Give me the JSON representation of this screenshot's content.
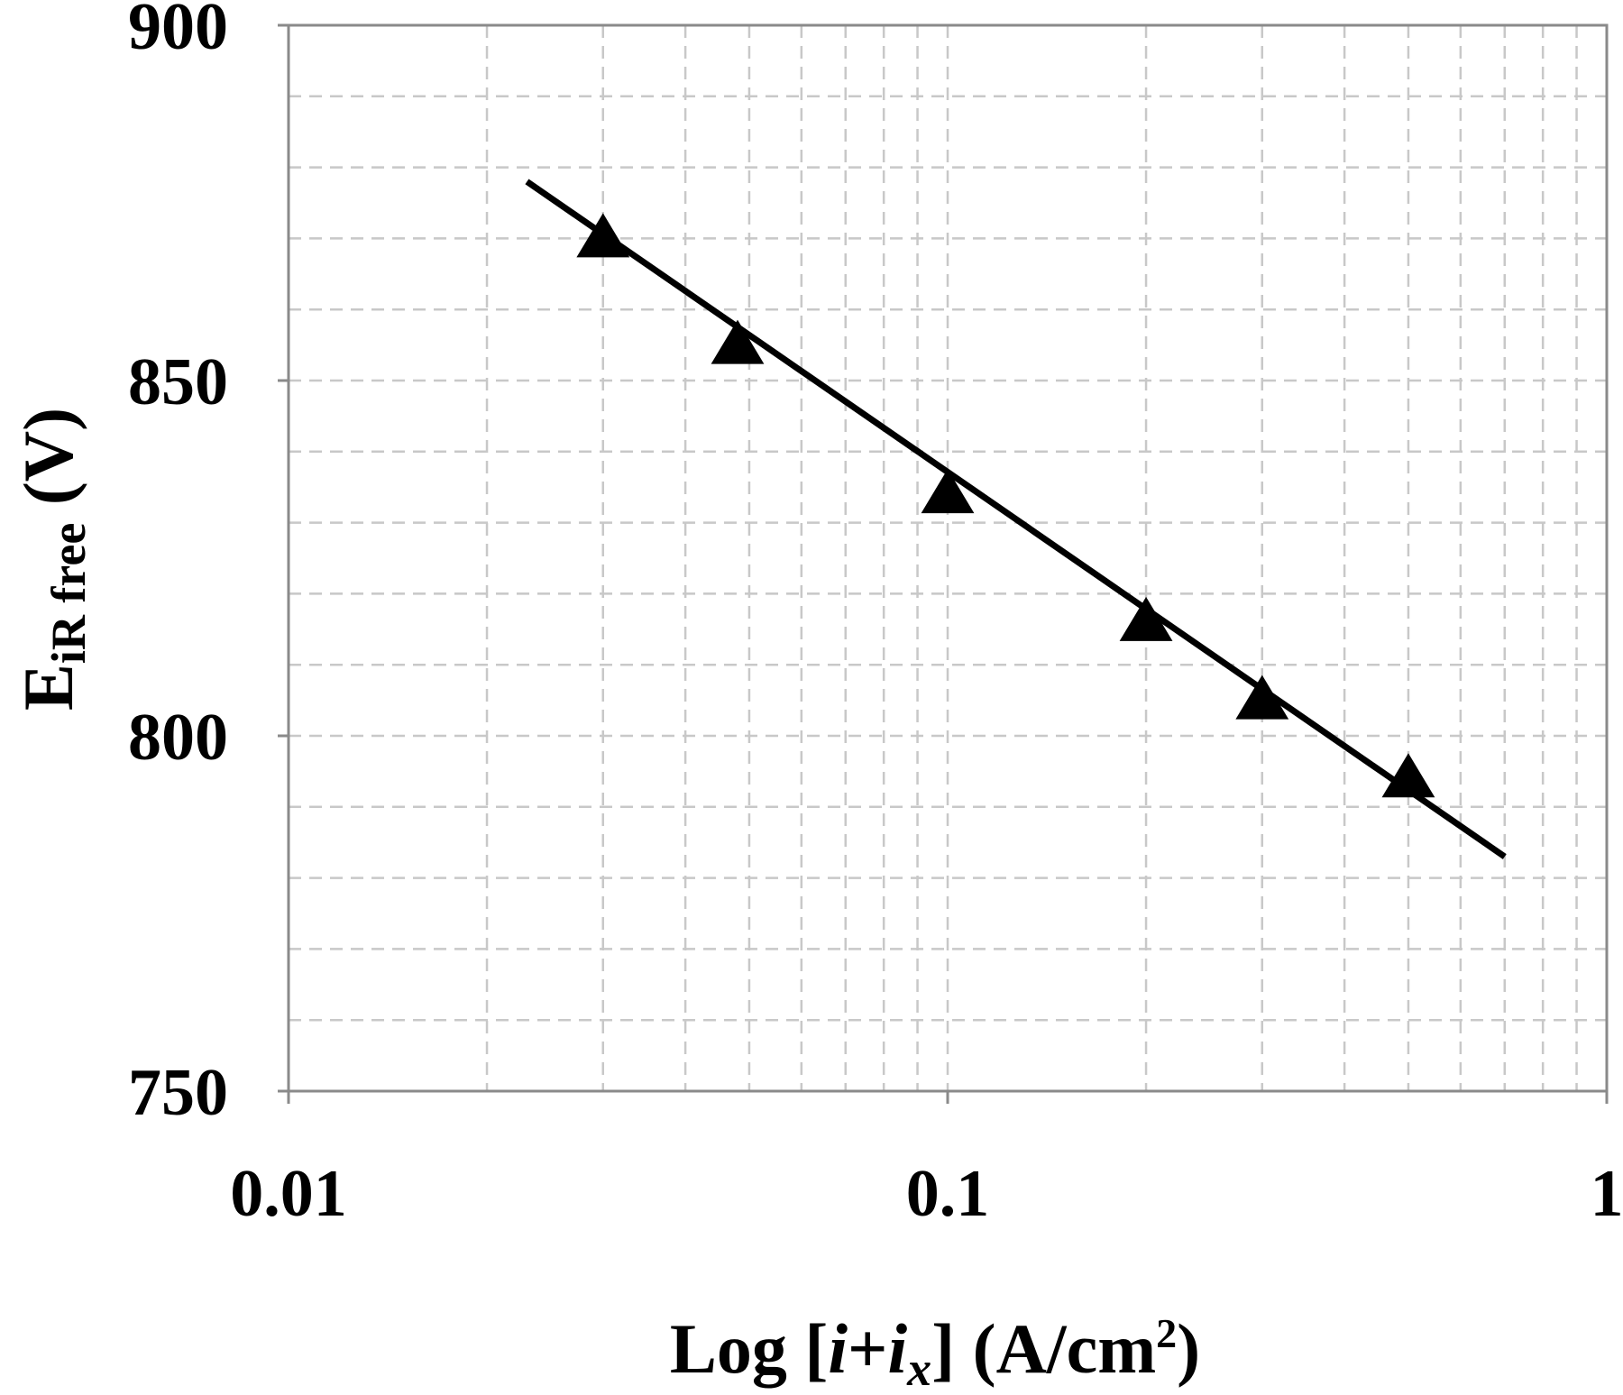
{
  "chart_data": {
    "type": "scatter",
    "xlabel": {
      "prefix": "Log [",
      "var_i": "i",
      "plus": "+",
      "var_ix": "i",
      "sub_x": "x",
      "suffix": "] (A/cm",
      "sup": "2",
      "close": ")"
    },
    "ylabel": {
      "main": "E",
      "sub": "iR free",
      "unit": " (V)"
    },
    "xscale": "log",
    "xlim": [
      0.01,
      1
    ],
    "ylim": [
      750,
      900
    ],
    "xticks": [
      {
        "value": 0.01,
        "label": "0.01"
      },
      {
        "value": 0.1,
        "label": "0.1"
      },
      {
        "value": 1,
        "label": "1"
      }
    ],
    "yticks": [
      {
        "value": 750,
        "label": "750"
      },
      {
        "value": 800,
        "label": "800"
      },
      {
        "value": 850,
        "label": "850"
      },
      {
        "value": 900,
        "label": "900"
      }
    ],
    "grid": true,
    "series": [
      {
        "marker": "triangle",
        "points": [
          {
            "x": 0.03,
            "y": 870
          },
          {
            "x": 0.048,
            "y": 855
          },
          {
            "x": 0.1,
            "y": 834
          },
          {
            "x": 0.2,
            "y": 816
          },
          {
            "x": 0.3,
            "y": 805
          },
          {
            "x": 0.5,
            "y": 794
          }
        ]
      }
    ],
    "fit_line": [
      {
        "x": 0.023,
        "y": 878
      },
      {
        "x": 0.7,
        "y": 783
      }
    ],
    "colors": {
      "marks": "#000000",
      "grid": "#c8c8c8",
      "frame": "#8a8a8a"
    }
  }
}
